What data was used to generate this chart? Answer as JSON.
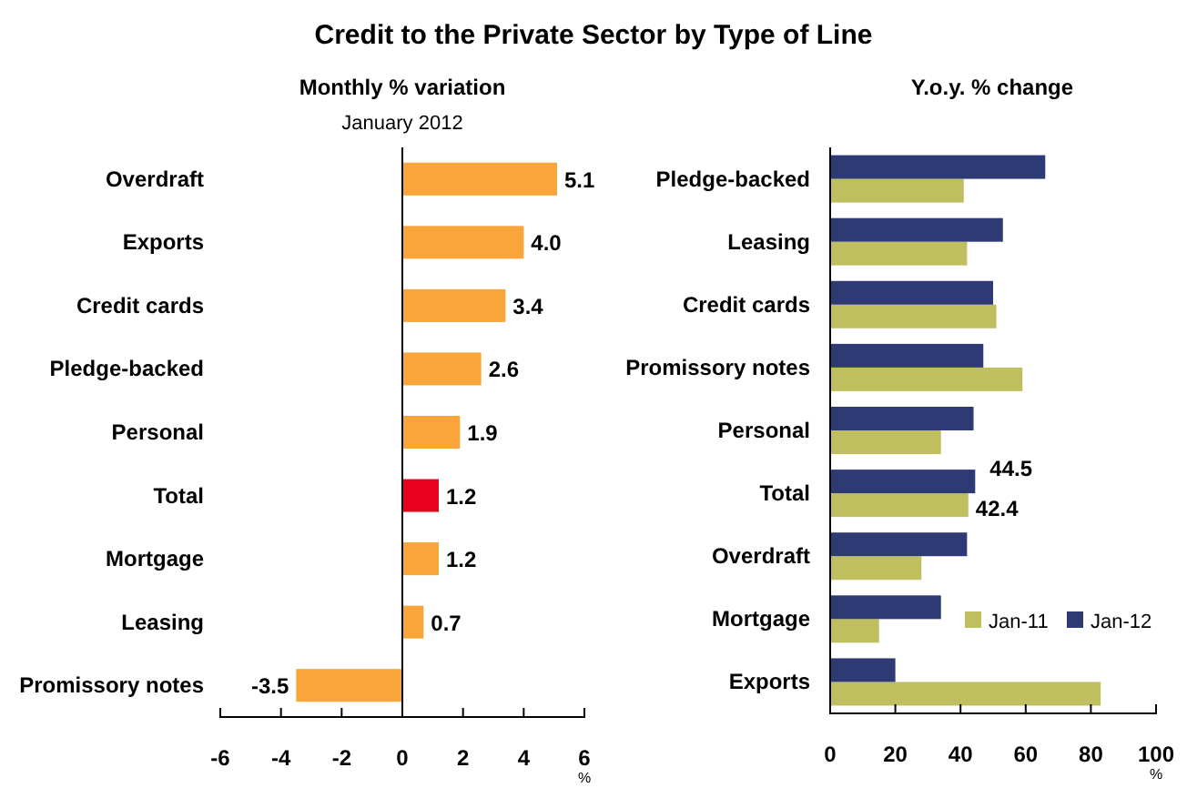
{
  "chart_data": [
    {
      "type": "bar",
      "orientation": "horizontal",
      "title": "Credit to the Private Sector by Type of Line",
      "subtitle": "Monthly % variation",
      "annotations": [
        "January 2012"
      ],
      "xlabel": "%",
      "categories": [
        "Overdraft",
        "Exports",
        "Credit cards",
        "Pledge-backed",
        "Personal",
        "Total",
        "Mortgage",
        "Leasing",
        "Promissory notes"
      ],
      "values": [
        5.1,
        4.0,
        3.4,
        2.6,
        1.9,
        1.2,
        1.2,
        0.7,
        -3.5
      ],
      "colors": [
        "#f9a53a",
        "#f9a53a",
        "#f9a53a",
        "#f9a53a",
        "#f9a53a",
        "#e8001c",
        "#f9a53a",
        "#f9a53a",
        "#f9a53a"
      ],
      "value_labels": [
        "5.1",
        "4.0",
        "3.4",
        "2.6",
        "1.9",
        "1.2",
        "1.2",
        "0.7",
        "-3.5"
      ],
      "xlim": [
        -6,
        6
      ],
      "xticks": [
        -6,
        -4,
        -2,
        0,
        2,
        4,
        6
      ],
      "legend": false
    },
    {
      "type": "bar",
      "orientation": "horizontal",
      "title": "Y.o.y. % change",
      "xlabel": "%",
      "categories": [
        "Pledge-backed",
        "Leasing",
        "Credit cards",
        "Promissory notes",
        "Personal",
        "Total",
        "Overdraft",
        "Mortgage",
        "Exports"
      ],
      "series": [
        {
          "name": "Jan-11",
          "color": "#bfbf60",
          "values": [
            41,
            42,
            51,
            59,
            34,
            42.4,
            28,
            15,
            83
          ],
          "value_labels": [
            null,
            null,
            null,
            null,
            null,
            "42.4",
            null,
            null,
            null
          ]
        },
        {
          "name": "Jan-12",
          "color": "#2e3a73",
          "values": [
            66,
            53,
            50,
            47,
            44,
            44.5,
            42,
            34,
            20
          ],
          "value_labels": [
            null,
            null,
            null,
            null,
            null,
            "44.5",
            null,
            null,
            null
          ]
        }
      ],
      "xlim": [
        0,
        100
      ],
      "xticks": [
        0,
        20,
        40,
        60,
        80,
        100
      ],
      "legend": "bottom right"
    }
  ]
}
